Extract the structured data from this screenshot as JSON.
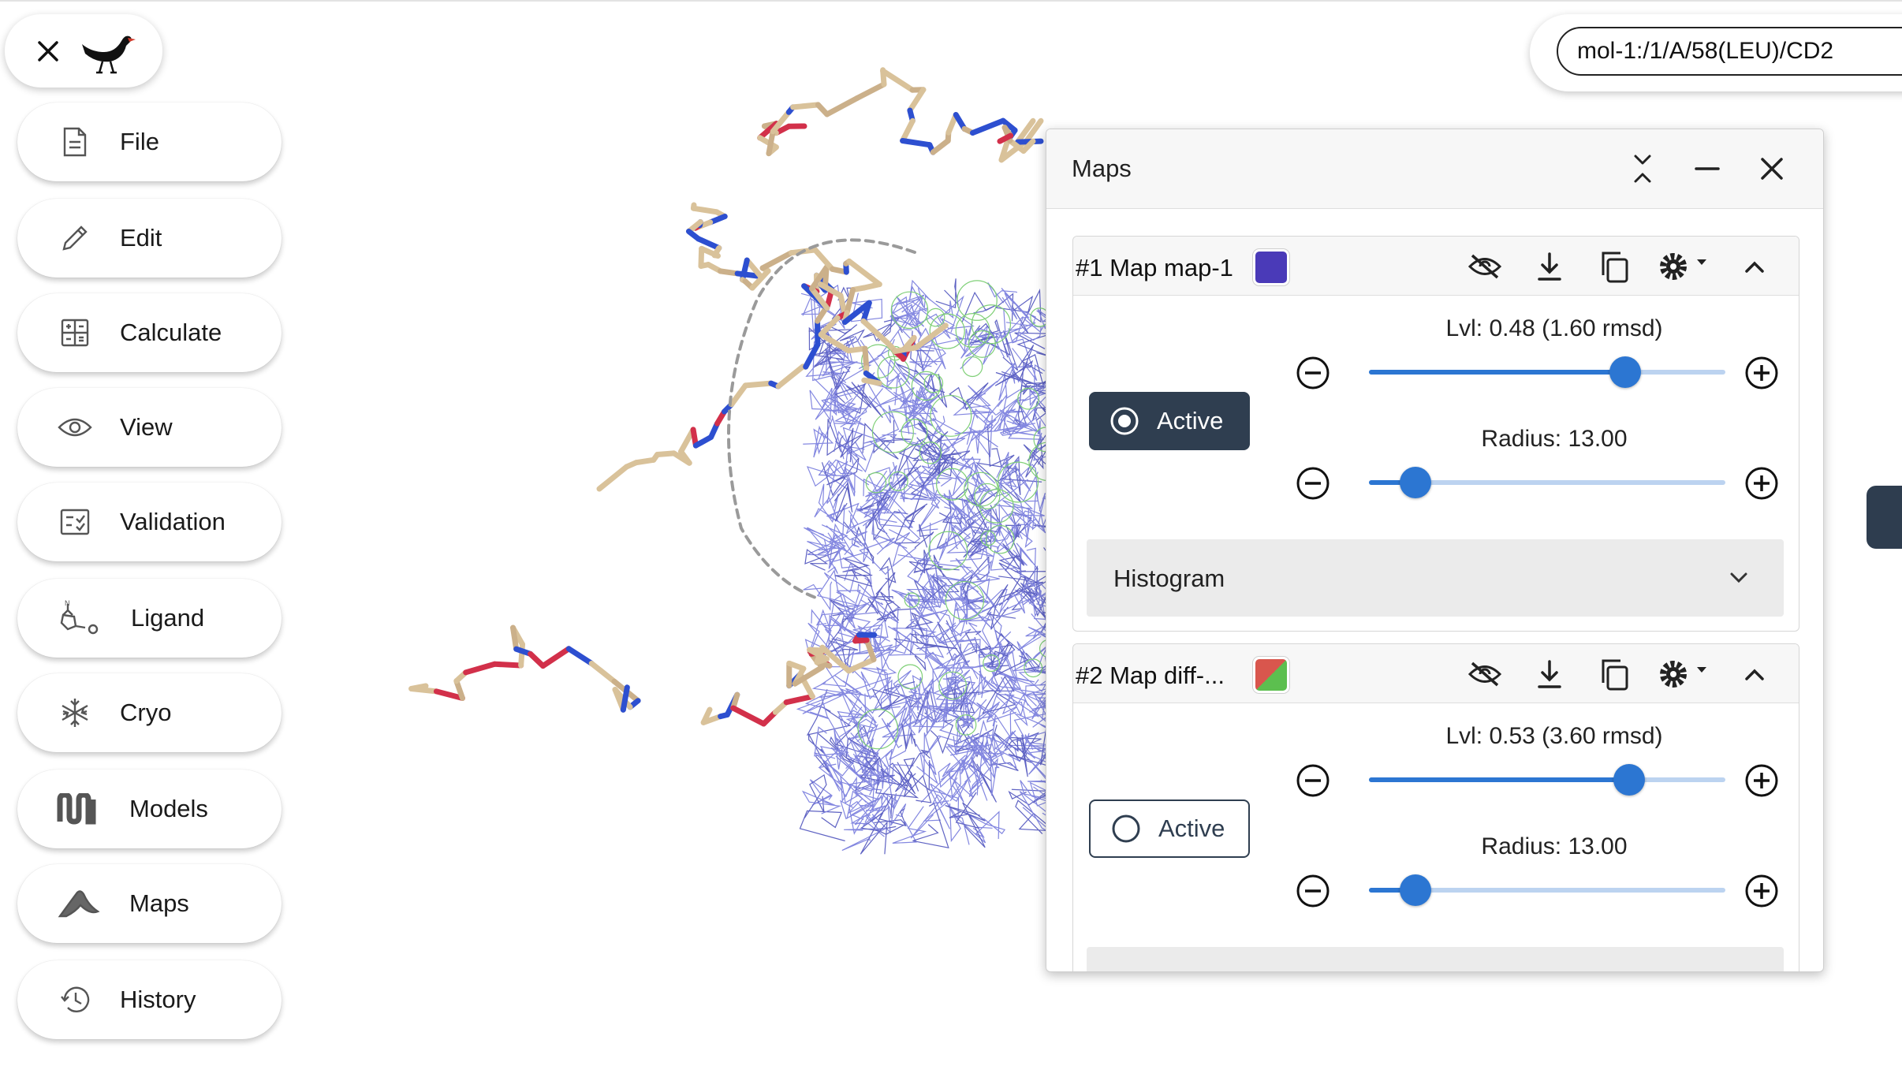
{
  "app": {
    "close_icon": "close-icon",
    "logo": "moorhen-bird-logo"
  },
  "sidebar": {
    "items": [
      {
        "label": "File",
        "icon": "file-icon"
      },
      {
        "label": "Edit",
        "icon": "pencil-icon"
      },
      {
        "label": "Calculate",
        "icon": "calculator-icon"
      },
      {
        "label": "View",
        "icon": "eye-icon"
      },
      {
        "label": "Validation",
        "icon": "checklist-icon"
      },
      {
        "label": "Ligand",
        "icon": "ligand-icon"
      },
      {
        "label": "Cryo",
        "icon": "snowflake-icon"
      },
      {
        "label": "Models",
        "icon": "models-icon"
      },
      {
        "label": "Maps",
        "icon": "maps-icon"
      },
      {
        "label": "History",
        "icon": "history-icon"
      }
    ]
  },
  "search": {
    "value": "mol-1:/1/A/58(LEU)/CD2"
  },
  "maps_panel": {
    "title": "Maps",
    "header_icons": [
      "collapse-icon",
      "minimize-icon",
      "close-icon"
    ],
    "maps": [
      {
        "name": "#1 Map map-1",
        "color": "#4a3ab8",
        "active_label": "Active",
        "active": true,
        "level_label": "Lvl: 0.48 (1.60 rmsd)",
        "level_fraction": 0.72,
        "radius_label": "Radius: 13.00",
        "radius_fraction": 0.13,
        "histogram_label": "Histogram",
        "icons": [
          "eye-slash-icon",
          "download-icon",
          "copy-icon",
          "gear-icon",
          "chevron-up-icon"
        ]
      },
      {
        "name": "#2 Map diff-...",
        "color_a": "#d9564d",
        "color_b": "#5cbf4f",
        "active_label": "Active",
        "active": false,
        "level_label": "Lvl: 0.53 (3.60 rmsd)",
        "level_fraction": 0.73,
        "radius_label": "Radius: 13.00",
        "radius_fraction": 0.13,
        "icons": [
          "eye-slash-icon",
          "download-icon",
          "copy-icon",
          "gear-icon",
          "chevron-up-icon"
        ]
      }
    ]
  }
}
